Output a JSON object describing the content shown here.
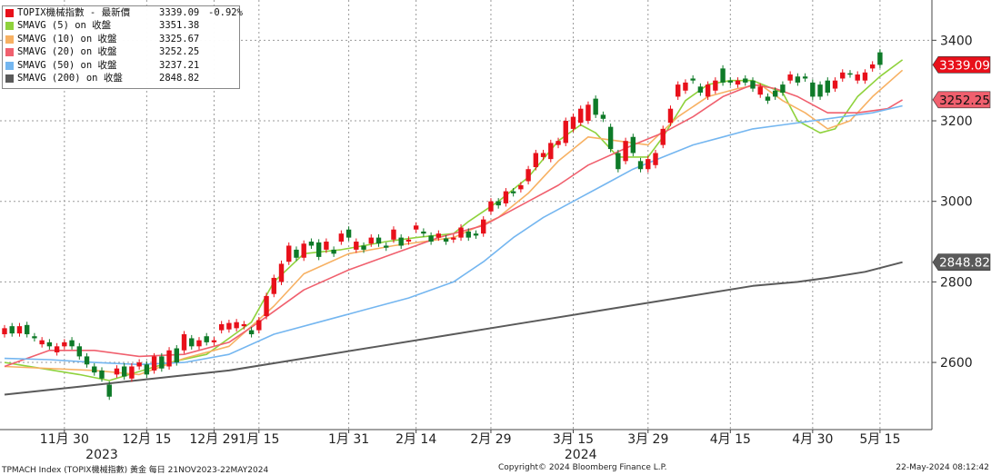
{
  "footer": {
    "left": "TPMACH Index (TOPIX機械指數) 黃金  每日 21NOV2023-22MAY2024",
    "center": "Copyright© 2024 Bloomberg Finance L.P.",
    "right": "22-May-2024 08:12:42"
  },
  "legend": [
    {
      "label": "TOPIX機械指數 - 最新價",
      "value": "3339.09",
      "change": "-0.92%",
      "color": "#e8101a"
    },
    {
      "label": "SMAVG (5)  on 收盤",
      "value": "3351.38",
      "change": "",
      "color": "#8fd23c"
    },
    {
      "label": "SMAVG (10)  on 收盤",
      "value": "3325.67",
      "change": "",
      "color": "#f7b163"
    },
    {
      "label": "SMAVG (20)  on 收盤",
      "value": "3252.25",
      "change": "",
      "color": "#f0606e"
    },
    {
      "label": "SMAVG (50)  on 收盤",
      "value": "3237.21",
      "change": "",
      "color": "#74b6f0"
    },
    {
      "label": "SMAVG (200)  on 收盤",
      "value": "2848.82",
      "change": "",
      "color": "#5a5a5a"
    }
  ],
  "chart_data": {
    "type": "candlestick",
    "ylim": [
      2440,
      3500
    ],
    "yticks": [
      "3400",
      "3200",
      "3000",
      "2800",
      "2600"
    ],
    "xticks": [
      {
        "label": "11月 30",
        "index": 8
      },
      {
        "label": "12月 15",
        "index": 19
      },
      {
        "label": "12月 29",
        "index": 28
      },
      {
        "label": "1月 15",
        "index": 34
      },
      {
        "label": "1月 31",
        "index": 46
      },
      {
        "label": "2月 14",
        "index": 55
      },
      {
        "label": "2月 29",
        "index": 65
      },
      {
        "label": "3月 15",
        "index": 76
      },
      {
        "label": "3月 29",
        "index": 86
      },
      {
        "label": "4月 15",
        "index": 97
      },
      {
        "label": "4月 30",
        "index": 108
      },
      {
        "label": "5月 15",
        "index": 117
      }
    ],
    "year_labels": [
      {
        "label": "2023",
        "index": 13
      },
      {
        "label": "2024",
        "index": 77
      }
    ],
    "price_tags": [
      {
        "value": 3339.09,
        "text": "3339.09",
        "bg": "#e8101a",
        "fg": "#ffffff"
      },
      {
        "value": 3252.25,
        "text": "3252.25",
        "bg": "#f0606e",
        "fg": "#111111"
      },
      {
        "value": 2848.82,
        "text": "2848.82",
        "bg": "#5a5a5a",
        "fg": "#ffffff"
      }
    ],
    "up_color": "#e8101a",
    "down_color": "#0e7a28",
    "candles": [
      {
        "o": 2670,
        "c": 2685
      },
      {
        "o": 2690,
        "c": 2672
      },
      {
        "o": 2672,
        "c": 2690
      },
      {
        "o": 2693,
        "c": 2670
      },
      {
        "o": 2665,
        "c": 2660
      },
      {
        "o": 2645,
        "c": 2655
      },
      {
        "o": 2650,
        "c": 2640
      },
      {
        "o": 2625,
        "c": 2640
      },
      {
        "o": 2640,
        "c": 2650
      },
      {
        "o": 2655,
        "c": 2640
      },
      {
        "o": 2640,
        "c": 2615
      },
      {
        "o": 2615,
        "c": 2595
      },
      {
        "o": 2590,
        "c": 2575
      },
      {
        "o": 2580,
        "c": 2560
      },
      {
        "o": 2545,
        "c": 2515
      },
      {
        "o": 2570,
        "c": 2585
      },
      {
        "o": 2590,
        "c": 2565
      },
      {
        "o": 2560,
        "c": 2590
      },
      {
        "o": 2590,
        "c": 2600
      },
      {
        "o": 2595,
        "c": 2570
      },
      {
        "o": 2580,
        "c": 2615
      },
      {
        "o": 2615,
        "c": 2585
      },
      {
        "o": 2590,
        "c": 2630
      },
      {
        "o": 2635,
        "c": 2600
      },
      {
        "o": 2630,
        "c": 2670
      },
      {
        "o": 2660,
        "c": 2640
      },
      {
        "o": 2640,
        "c": 2655
      },
      {
        "o": 2665,
        "c": 2650
      },
      {
        "o": 2650,
        "c": 2655
      },
      {
        "o": 2680,
        "c": 2695
      },
      {
        "o": 2682,
        "c": 2698
      },
      {
        "o": 2685,
        "c": 2700
      },
      {
        "o": 2690,
        "c": 2695
      },
      {
        "o": 2680,
        "c": 2670
      },
      {
        "o": 2680,
        "c": 2705
      },
      {
        "o": 2715,
        "c": 2765
      },
      {
        "o": 2770,
        "c": 2810
      },
      {
        "o": 2800,
        "c": 2845
      },
      {
        "o": 2850,
        "c": 2890
      },
      {
        "o": 2880,
        "c": 2860
      },
      {
        "o": 2860,
        "c": 2895
      },
      {
        "o": 2900,
        "c": 2890
      },
      {
        "o": 2898,
        "c": 2862
      },
      {
        "o": 2880,
        "c": 2900
      },
      {
        "o": 2880,
        "c": 2870
      },
      {
        "o": 2900,
        "c": 2920
      },
      {
        "o": 2930,
        "c": 2910
      },
      {
        "o": 2880,
        "c": 2900
      },
      {
        "o": 2890,
        "c": 2880
      },
      {
        "o": 2895,
        "c": 2910
      },
      {
        "o": 2910,
        "c": 2895
      },
      {
        "o": 2890,
        "c": 2885
      },
      {
        "o": 2905,
        "c": 2930
      },
      {
        "o": 2910,
        "c": 2890
      },
      {
        "o": 2900,
        "c": 2905
      },
      {
        "o": 2930,
        "c": 2940
      },
      {
        "o": 2925,
        "c": 2920
      },
      {
        "o": 2915,
        "c": 2900
      },
      {
        "o": 2910,
        "c": 2920
      },
      {
        "o": 2908,
        "c": 2900
      },
      {
        "o": 2905,
        "c": 2910
      },
      {
        "o": 2910,
        "c": 2935
      },
      {
        "o": 2925,
        "c": 2910
      },
      {
        "o": 2920,
        "c": 2915
      },
      {
        "o": 2920,
        "c": 2955
      },
      {
        "o": 2975,
        "c": 3000
      },
      {
        "o": 3000,
        "c": 2990
      },
      {
        "o": 2995,
        "c": 3025
      },
      {
        "o": 3025,
        "c": 3020
      },
      {
        "o": 3030,
        "c": 3040
      },
      {
        "o": 3050,
        "c": 3080
      },
      {
        "o": 3085,
        "c": 3120
      },
      {
        "o": 3110,
        "c": 3120
      },
      {
        "o": 3105,
        "c": 3145
      },
      {
        "o": 3140,
        "c": 3150
      },
      {
        "o": 3145,
        "c": 3200
      },
      {
        "o": 3180,
        "c": 3210
      },
      {
        "o": 3195,
        "c": 3230
      },
      {
        "o": 3200,
        "c": 3240
      },
      {
        "o": 3255,
        "c": 3215
      },
      {
        "o": 3215,
        "c": 3205
      },
      {
        "o": 3185,
        "c": 3130
      },
      {
        "o": 3120,
        "c": 3080
      },
      {
        "o": 3100,
        "c": 3150
      },
      {
        "o": 3160,
        "c": 3120
      },
      {
        "o": 3100,
        "c": 3080
      },
      {
        "o": 3080,
        "c": 3105
      },
      {
        "o": 3090,
        "c": 3120
      },
      {
        "o": 3140,
        "c": 3180
      },
      {
        "o": 3195,
        "c": 3230
      },
      {
        "o": 3260,
        "c": 3290
      },
      {
        "o": 3275,
        "c": 3295
      },
      {
        "o": 3305,
        "c": 3300
      },
      {
        "o": 3285,
        "c": 3270
      },
      {
        "o": 3260,
        "c": 3290
      },
      {
        "o": 3275,
        "c": 3300
      },
      {
        "o": 3330,
        "c": 3295
      },
      {
        "o": 3300,
        "c": 3295
      },
      {
        "o": 3290,
        "c": 3300
      },
      {
        "o": 3305,
        "c": 3295
      },
      {
        "o": 3300,
        "c": 3280
      },
      {
        "o": 3265,
        "c": 3285
      },
      {
        "o": 3260,
        "c": 3250
      },
      {
        "o": 3275,
        "c": 3260
      },
      {
        "o": 3290,
        "c": 3270
      },
      {
        "o": 3300,
        "c": 3315
      },
      {
        "o": 3310,
        "c": 3295
      },
      {
        "o": 3310,
        "c": 3305
      },
      {
        "o": 3295,
        "c": 3260
      },
      {
        "o": 3290,
        "c": 3260
      },
      {
        "o": 3300,
        "c": 3270
      },
      {
        "o": 3280,
        "c": 3300
      },
      {
        "o": 3305,
        "c": 3320
      },
      {
        "o": 3318,
        "c": 3315
      },
      {
        "o": 3300,
        "c": 3315
      },
      {
        "o": 3300,
        "c": 3320
      },
      {
        "o": 3330,
        "c": 3340
      },
      {
        "o": 3370,
        "c": 3339
      }
    ],
    "series": [
      {
        "name": "SMAVG (5)",
        "color": "#8fd23c",
        "points": [
          [
            0,
            2600
          ],
          [
            10,
            2570
          ],
          [
            14,
            2555
          ],
          [
            22,
            2600
          ],
          [
            27,
            2620
          ],
          [
            33,
            2700
          ],
          [
            36,
            2800
          ],
          [
            40,
            2870
          ],
          [
            45,
            2880
          ],
          [
            51,
            2900
          ],
          [
            55,
            2910
          ],
          [
            60,
            2920
          ],
          [
            62,
            2950
          ],
          [
            66,
            3000
          ],
          [
            70,
            3060
          ],
          [
            74,
            3150
          ],
          [
            77,
            3190
          ],
          [
            79,
            3170
          ],
          [
            82,
            3110
          ],
          [
            86,
            3110
          ],
          [
            88,
            3160
          ],
          [
            91,
            3250
          ],
          [
            94,
            3290
          ],
          [
            97,
            3300
          ],
          [
            100,
            3300
          ],
          [
            104,
            3270
          ],
          [
            106,
            3200
          ],
          [
            109,
            3170
          ],
          [
            111,
            3180
          ],
          [
            114,
            3260
          ],
          [
            117,
            3310
          ],
          [
            120,
            3351.38
          ]
        ]
      },
      {
        "name": "SMAVG (10)",
        "color": "#f7b163",
        "points": [
          [
            0,
            2590
          ],
          [
            12,
            2580
          ],
          [
            18,
            2570
          ],
          [
            24,
            2610
          ],
          [
            30,
            2640
          ],
          [
            36,
            2740
          ],
          [
            40,
            2820
          ],
          [
            46,
            2870
          ],
          [
            52,
            2890
          ],
          [
            60,
            2910
          ],
          [
            66,
            2960
          ],
          [
            70,
            3020
          ],
          [
            74,
            3100
          ],
          [
            78,
            3160
          ],
          [
            82,
            3150
          ],
          [
            86,
            3140
          ],
          [
            90,
            3210
          ],
          [
            94,
            3260
          ],
          [
            98,
            3280
          ],
          [
            101,
            3290
          ],
          [
            104,
            3250
          ],
          [
            107,
            3220
          ],
          [
            110,
            3180
          ],
          [
            113,
            3200
          ],
          [
            116,
            3260
          ],
          [
            120,
            3325.67
          ]
        ]
      },
      {
        "name": "SMAVG (20)",
        "color": "#f0606e",
        "points": [
          [
            0,
            2590
          ],
          [
            6,
            2630
          ],
          [
            12,
            2630
          ],
          [
            18,
            2615
          ],
          [
            24,
            2620
          ],
          [
            30,
            2650
          ],
          [
            34,
            2700
          ],
          [
            40,
            2780
          ],
          [
            46,
            2830
          ],
          [
            52,
            2870
          ],
          [
            58,
            2910
          ],
          [
            64,
            2940
          ],
          [
            70,
            3000
          ],
          [
            74,
            3040
          ],
          [
            78,
            3090
          ],
          [
            84,
            3140
          ],
          [
            88,
            3170
          ],
          [
            92,
            3210
          ],
          [
            96,
            3260
          ],
          [
            100,
            3290
          ],
          [
            103,
            3280
          ],
          [
            106,
            3260
          ],
          [
            108,
            3240
          ],
          [
            110,
            3220
          ],
          [
            114,
            3220
          ],
          [
            118,
            3230
          ],
          [
            120,
            3252.25
          ]
        ]
      },
      {
        "name": "SMAVG (50)",
        "color": "#74b6f0",
        "points": [
          [
            0,
            2610
          ],
          [
            6,
            2607
          ],
          [
            12,
            2600
          ],
          [
            18,
            2595
          ],
          [
            24,
            2600
          ],
          [
            30,
            2620
          ],
          [
            36,
            2670
          ],
          [
            42,
            2700
          ],
          [
            48,
            2730
          ],
          [
            54,
            2760
          ],
          [
            60,
            2800
          ],
          [
            64,
            2850
          ],
          [
            68,
            2910
          ],
          [
            72,
            2960
          ],
          [
            76,
            3000
          ],
          [
            80,
            3040
          ],
          [
            84,
            3080
          ],
          [
            88,
            3110
          ],
          [
            92,
            3140
          ],
          [
            96,
            3160
          ],
          [
            100,
            3180
          ],
          [
            104,
            3190
          ],
          [
            108,
            3200
          ],
          [
            112,
            3210
          ],
          [
            116,
            3220
          ],
          [
            120,
            3237.21
          ]
        ]
      },
      {
        "name": "SMAVG (200)",
        "color": "#5a5a5a",
        "points": [
          [
            0,
            2520
          ],
          [
            10,
            2540
          ],
          [
            20,
            2560
          ],
          [
            30,
            2580
          ],
          [
            40,
            2610
          ],
          [
            50,
            2640
          ],
          [
            60,
            2670
          ],
          [
            70,
            2700
          ],
          [
            80,
            2730
          ],
          [
            90,
            2760
          ],
          [
            100,
            2790
          ],
          [
            106,
            2800
          ],
          [
            110,
            2810
          ],
          [
            115,
            2825
          ],
          [
            120,
            2848.82
          ]
        ]
      }
    ]
  }
}
